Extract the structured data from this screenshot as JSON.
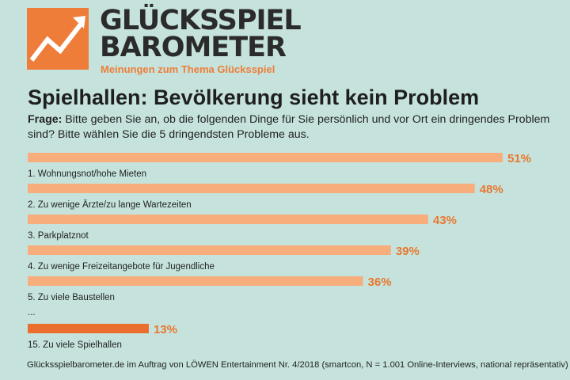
{
  "brand": {
    "line1": "GLÜCKSSPIEL",
    "line2": "BAROMETER",
    "tagline": "Meinungen zum Thema Glücksspiel"
  },
  "title": "Spielhallen: Bevölkerung sieht kein Problem",
  "question": {
    "label": "Frage:",
    "text": " Bitte geben Sie an, ob die folgenden Dinge für Sie persönlich und vor Ort ein dringendes Problem sind? Bitte wählen Sie die 5 dringendsten Probleme aus."
  },
  "ellipsis": "...",
  "footer": "Glücksspielbarometer.de im Auftrag von LÖWEN Entertainment Nr. 4/2018 (smartcon, N = 1.001 Online-Interviews, national repräsentativ)",
  "chart_data": {
    "type": "bar",
    "orientation": "horizontal",
    "categories": [
      "1. Wohnungsnot/hohe Mieten",
      "2. Zu wenige Ärzte/zu lange Wartezeiten",
      "3. Parkplatznot",
      "4. Zu wenige Freizeitangebote für Jugendliche",
      "5. Zu viele Baustellen",
      "15. Zu viele Spielhallen"
    ],
    "values": [
      51,
      48,
      43,
      39,
      36,
      13
    ],
    "value_labels": [
      "51%",
      "48%",
      "43%",
      "39%",
      "36%",
      "13%"
    ],
    "colors": {
      "bar": "#f7ae7c",
      "bar_highlight": "#ea6f2f",
      "value_text": "#e9772f"
    }
  }
}
